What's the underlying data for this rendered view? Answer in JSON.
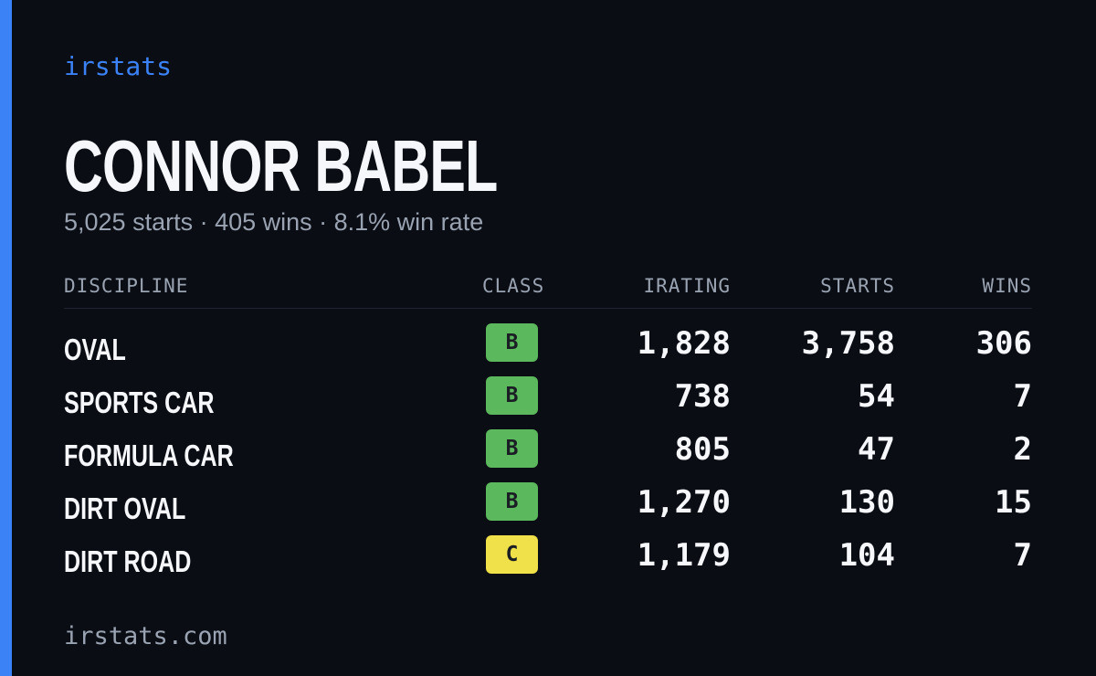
{
  "brand": "irstats",
  "header": {
    "name": "CONNOR BABEL",
    "summary": "5,025 starts · 405 wins · 8.1% win rate"
  },
  "table": {
    "columns": [
      "DISCIPLINE",
      "CLASS",
      "IRATING",
      "STARTS",
      "WINS"
    ],
    "rows": [
      {
        "discipline": "OVAL",
        "class": "B",
        "class_color": "#5cb85c",
        "irating": "1,828",
        "starts": "3,758",
        "wins": "306"
      },
      {
        "discipline": "SPORTS CAR",
        "class": "B",
        "class_color": "#5cb85c",
        "irating": "738",
        "starts": "54",
        "wins": "7"
      },
      {
        "discipline": "FORMULA CAR",
        "class": "B",
        "class_color": "#5cb85c",
        "irating": "805",
        "starts": "47",
        "wins": "2"
      },
      {
        "discipline": "DIRT OVAL",
        "class": "B",
        "class_color": "#5cb85c",
        "irating": "1,270",
        "starts": "130",
        "wins": "15"
      },
      {
        "discipline": "DIRT ROAD",
        "class": "C",
        "class_color": "#f0e04a",
        "irating": "1,179",
        "starts": "104",
        "wins": "7"
      }
    ]
  },
  "footer": "irstats.com"
}
